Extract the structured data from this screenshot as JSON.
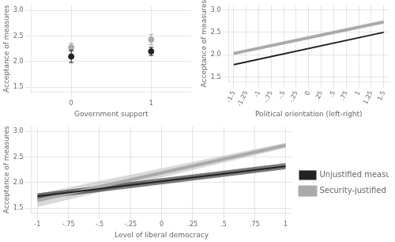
{
  "chart_data": [
    {
      "type": "scatter",
      "xlabel": "Government support",
      "ylabel": "Acceptance of measures",
      "x": [
        0,
        1
      ],
      "xlim": [
        -0.5,
        1.5
      ],
      "ylim": [
        1.4,
        3.1
      ],
      "xticks": [
        0,
        1
      ],
      "yticks": [
        1.5,
        {
          "value": 2.0,
          "label": "2.0"
        },
        2.5,
        {
          "value": 3.0,
          "label": "3.0"
        }
      ],
      "grid": true,
      "marker": "circle",
      "series": [
        {
          "color": "#aaaaaa",
          "values": [
            2.28,
            2.43
          ],
          "errors": [
            0.08,
            0.1
          ]
        },
        {
          "color": "#222222",
          "values": [
            2.1,
            2.2
          ],
          "errors": [
            0.12,
            0.08
          ]
        }
      ]
    },
    {
      "type": "line",
      "xlabel": "Political orientation (left-right)",
      "ylabel": "Acceptance of measures",
      "x": [
        -1.5,
        1.5
      ],
      "xlim": [
        -1.6,
        1.6
      ],
      "ylim": [
        1.4,
        3.1
      ],
      "xticks": [
        -1.5,
        -1.25,
        -1,
        {
          "value": -0.75,
          "label": "-.75"
        },
        {
          "value": -0.5,
          "label": "-.5"
        },
        {
          "value": -0.25,
          "label": "-.25"
        },
        0,
        {
          "value": 0.25,
          "label": ".25"
        },
        {
          "value": 0.5,
          "label": ".5"
        },
        {
          "value": 0.75,
          "label": ".75"
        },
        1,
        1.25,
        1.5
      ],
      "yticks": [
        1.5,
        {
          "value": 2.0,
          "label": "2.0"
        },
        2.5,
        {
          "value": 3.0,
          "label": "3.0"
        }
      ],
      "grid": true,
      "series": [
        {
          "color": "#aaaaaa",
          "values": [
            2.03,
            2.73
          ]
        },
        {
          "color": "#222222",
          "values": [
            1.78,
            2.5
          ]
        }
      ]
    },
    {
      "type": "line",
      "xlabel": "Level of liberal democracy",
      "ylabel": "Acceptance of measures",
      "x": [
        -1.0,
        1.0
      ],
      "xlim": [
        -1.05,
        1.05
      ],
      "ylim": [
        1.4,
        3.1
      ],
      "xticks": [
        -1,
        {
          "value": -0.75,
          "label": "-.75"
        },
        {
          "value": -0.5,
          "label": "-.5"
        },
        {
          "value": -0.25,
          "label": "-.25"
        },
        0,
        {
          "value": 0.25,
          "label": ".25"
        },
        {
          "value": 0.5,
          "label": ".5"
        },
        {
          "value": 0.75,
          "label": ".75"
        },
        1
      ],
      "yticks": [
        1.5,
        {
          "value": 2.0,
          "label": "2.0"
        },
        2.5,
        {
          "value": 3.0,
          "label": "3.0"
        }
      ],
      "grid": true,
      "legend": "right",
      "series": [
        {
          "name": "Security-justified measures",
          "color": "#aaaaaa",
          "values": [
            1.65,
            2.73
          ],
          "ci_lower": [
            1.52,
            2.68
          ],
          "ci_upper": [
            1.78,
            2.78
          ]
        },
        {
          "name": "Unjustified measures",
          "color": "#222222",
          "values": [
            1.73,
            2.32
          ],
          "ci_lower": [
            1.67,
            2.26
          ],
          "ci_upper": [
            1.79,
            2.38
          ]
        }
      ]
    }
  ]
}
